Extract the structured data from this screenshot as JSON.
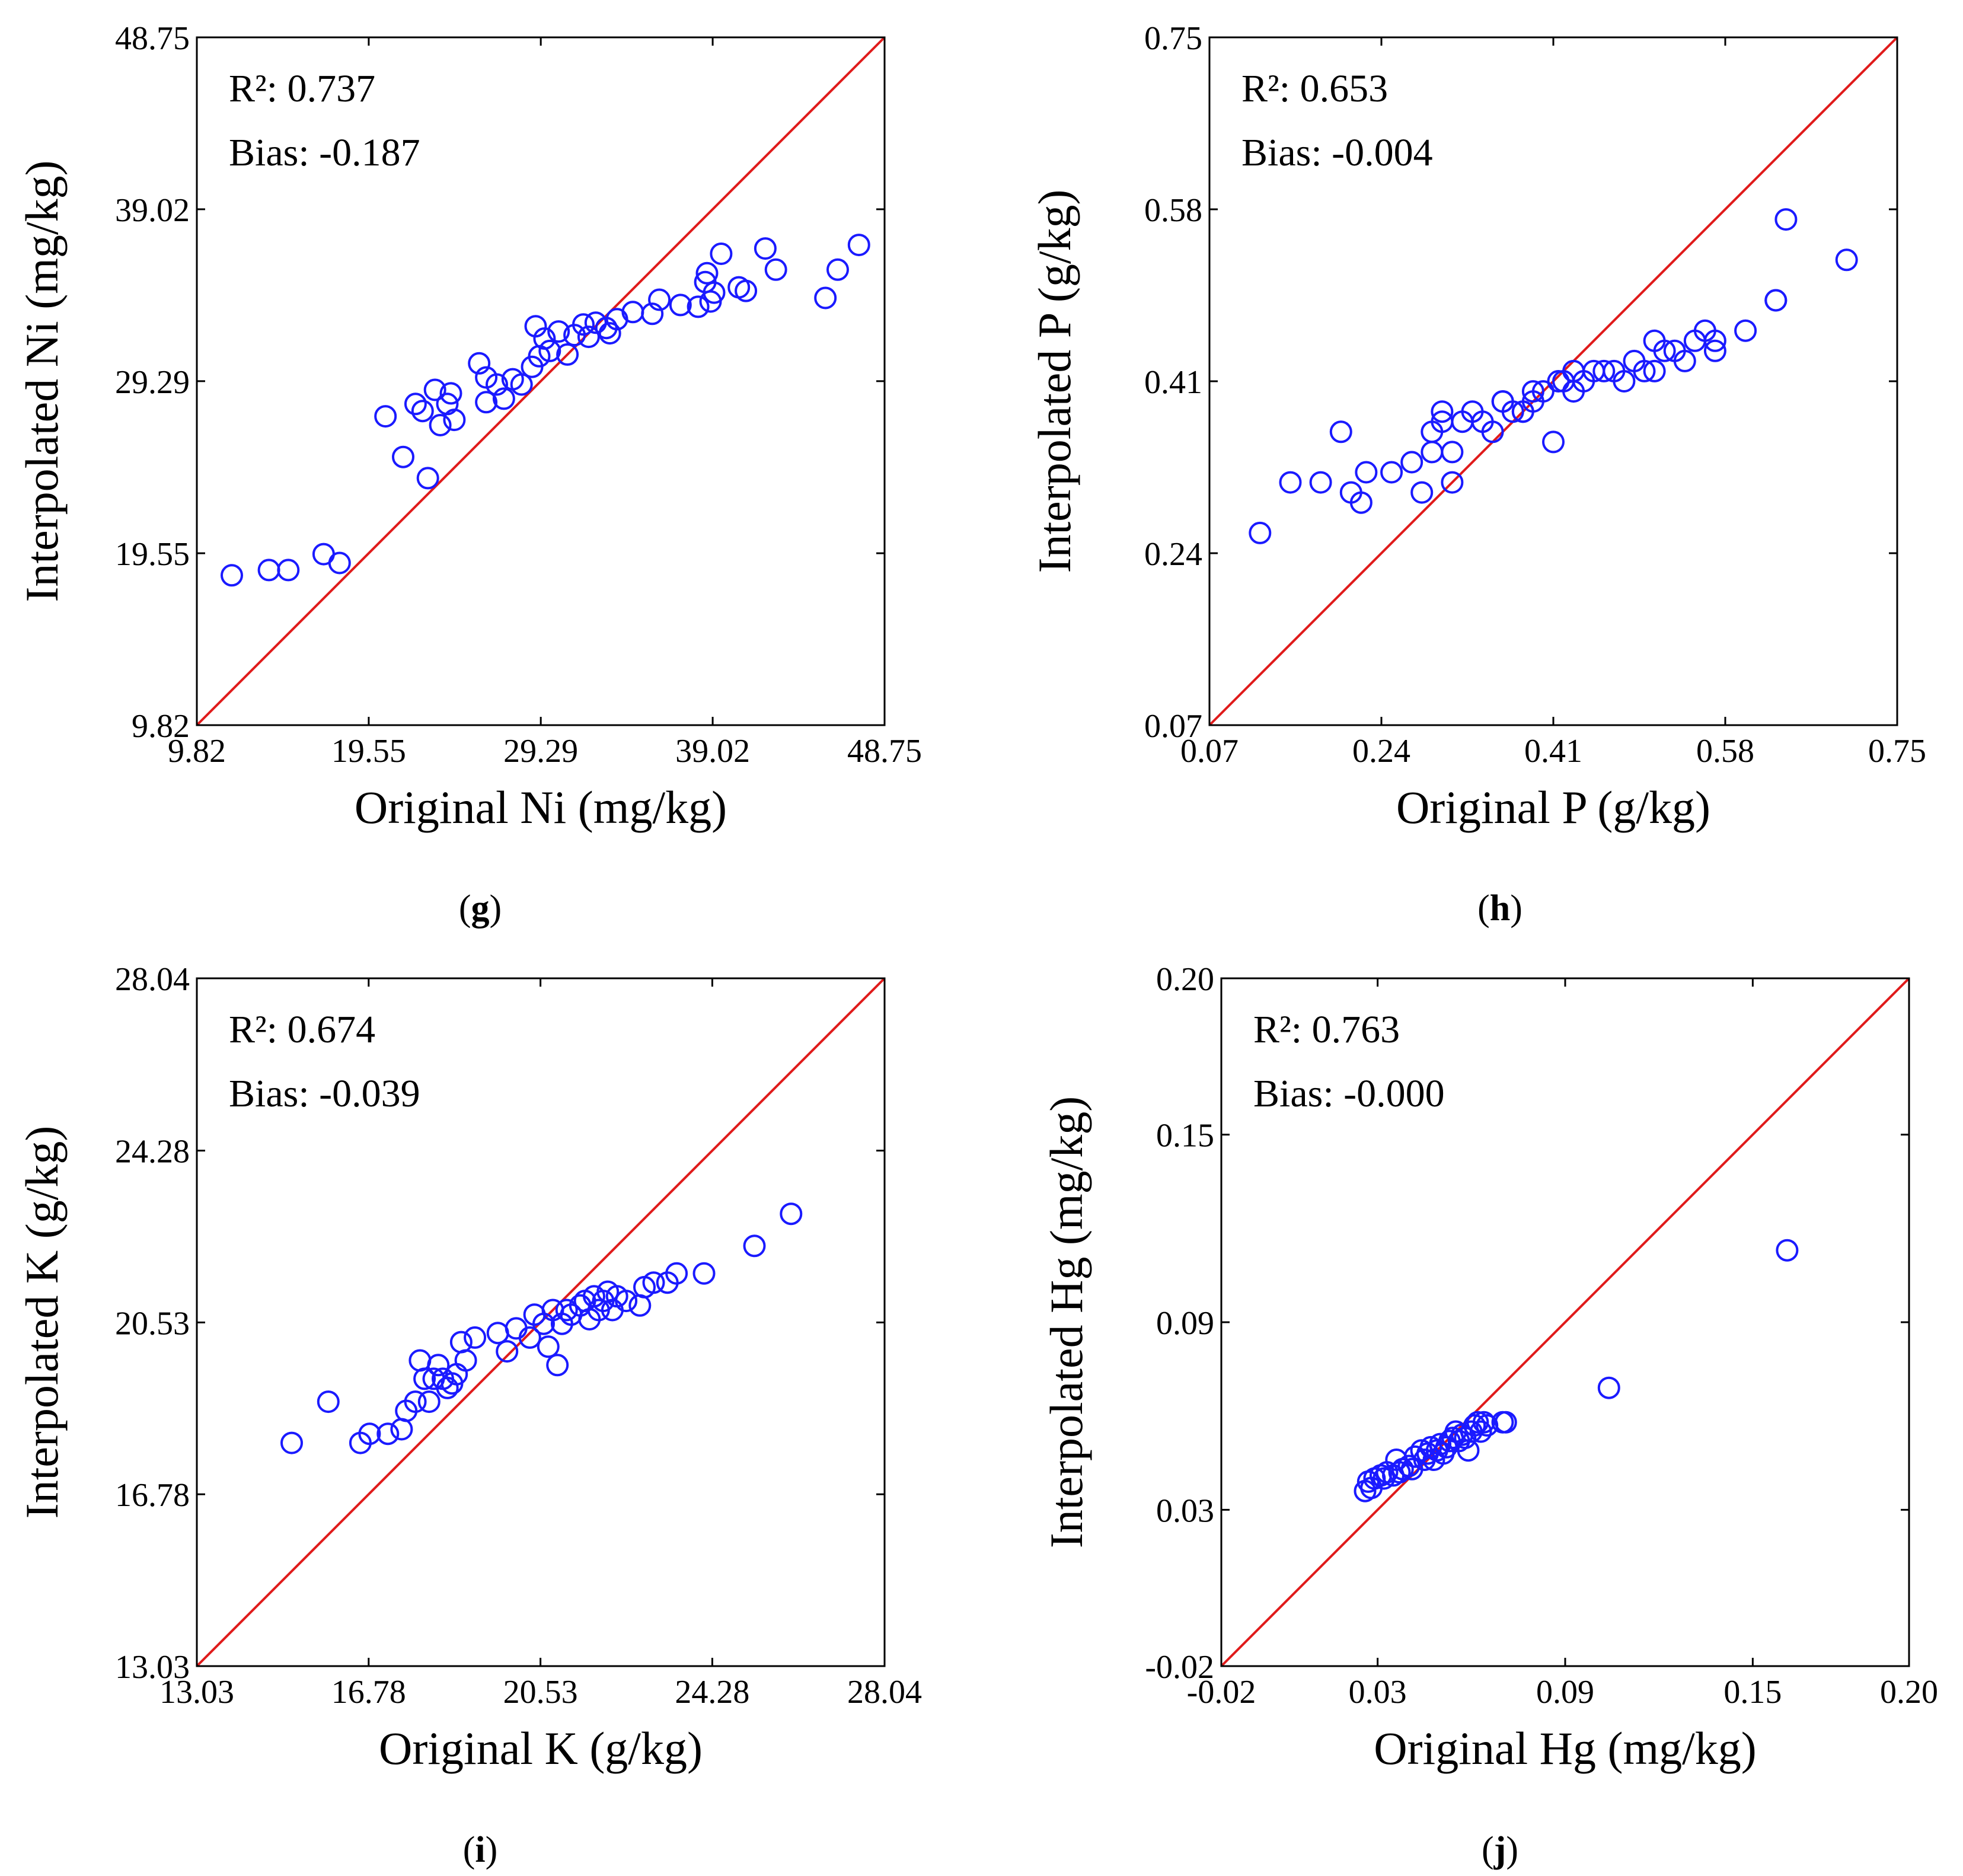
{
  "chart_data": [
    {
      "id": "g",
      "type": "scatter",
      "panel_label": "g",
      "xlabel": "Original Ni (mg/kg)",
      "ylabel": "Interpolated Ni (mg/kg)",
      "xlim": [
        9.82,
        48.75
      ],
      "ylim": [
        9.82,
        48.75
      ],
      "ticks": [
        9.82,
        19.55,
        29.29,
        39.02,
        48.75
      ],
      "tick_labels": [
        "9.82",
        "19.55",
        "29.29",
        "39.02",
        "48.75"
      ],
      "r2_text": "R²: 0.737",
      "bias_text": "Bias: -0.187",
      "reference_line": "1:1",
      "colors": {
        "points": "#1a1aff",
        "line": "#e01b1b",
        "frame": "#000000"
      },
      "points": [
        [
          11.8,
          18.3
        ],
        [
          13.9,
          18.6
        ],
        [
          15.0,
          18.6
        ],
        [
          17.0,
          19.5
        ],
        [
          17.9,
          19.0
        ],
        [
          20.5,
          27.3
        ],
        [
          21.5,
          25.0
        ],
        [
          22.2,
          28.0
        ],
        [
          22.6,
          27.6
        ],
        [
          22.9,
          23.8
        ],
        [
          23.3,
          28.8
        ],
        [
          23.6,
          26.8
        ],
        [
          24.0,
          28.0
        ],
        [
          24.2,
          28.6
        ],
        [
          24.4,
          27.1
        ],
        [
          25.8,
          30.3
        ],
        [
          26.2,
          29.5
        ],
        [
          26.2,
          28.1
        ],
        [
          26.8,
          29.1
        ],
        [
          27.2,
          28.3
        ],
        [
          27.7,
          29.4
        ],
        [
          28.2,
          29.1
        ],
        [
          28.8,
          30.1
        ],
        [
          29.0,
          32.4
        ],
        [
          29.2,
          30.7
        ],
        [
          29.5,
          31.7
        ],
        [
          29.8,
          31.0
        ],
        [
          30.3,
          32.1
        ],
        [
          30.8,
          30.8
        ],
        [
          31.2,
          31.9
        ],
        [
          31.7,
          32.5
        ],
        [
          32.0,
          31.8
        ],
        [
          32.4,
          32.6
        ],
        [
          33.0,
          32.3
        ],
        [
          33.6,
          32.8
        ],
        [
          33.2,
          32.0
        ],
        [
          34.5,
          33.2
        ],
        [
          35.6,
          33.1
        ],
        [
          36.0,
          33.9
        ],
        [
          37.2,
          33.6
        ],
        [
          38.2,
          33.5
        ],
        [
          38.6,
          34.9
        ],
        [
          38.9,
          33.8
        ],
        [
          39.1,
          34.3
        ],
        [
          38.7,
          35.4
        ],
        [
          39.5,
          36.5
        ],
        [
          40.5,
          34.6
        ],
        [
          40.9,
          34.4
        ],
        [
          42.0,
          36.8
        ],
        [
          42.6,
          35.6
        ],
        [
          45.4,
          34.0
        ],
        [
          46.1,
          35.6
        ],
        [
          47.3,
          37.0
        ]
      ]
    },
    {
      "id": "h",
      "type": "scatter",
      "panel_label": "h",
      "xlabel": "Original P (g/kg)",
      "ylabel": "Interpolated P (g/kg)",
      "xlim": [
        0.07,
        0.75
      ],
      "ylim": [
        0.07,
        0.75
      ],
      "ticks": [
        0.07,
        0.24,
        0.41,
        0.58,
        0.75
      ],
      "tick_labels": [
        "0.07",
        "0.24",
        "0.41",
        "0.58",
        "0.75"
      ],
      "r2_text": "R²: 0.653",
      "bias_text": "Bias: -0.004",
      "reference_line": "1:1",
      "colors": {
        "points": "#1a1aff",
        "line": "#e01b1b",
        "frame": "#000000"
      },
      "points": [
        [
          0.12,
          0.26
        ],
        [
          0.15,
          0.31
        ],
        [
          0.18,
          0.31
        ],
        [
          0.2,
          0.36
        ],
        [
          0.21,
          0.3
        ],
        [
          0.22,
          0.29
        ],
        [
          0.225,
          0.32
        ],
        [
          0.25,
          0.32
        ],
        [
          0.27,
          0.33
        ],
        [
          0.28,
          0.3
        ],
        [
          0.29,
          0.34
        ],
        [
          0.29,
          0.36
        ],
        [
          0.3,
          0.37
        ],
        [
          0.3,
          0.38
        ],
        [
          0.31,
          0.34
        ],
        [
          0.31,
          0.31
        ],
        [
          0.32,
          0.37
        ],
        [
          0.33,
          0.38
        ],
        [
          0.34,
          0.37
        ],
        [
          0.35,
          0.36
        ],
        [
          0.36,
          0.39
        ],
        [
          0.36,
          0.39
        ],
        [
          0.37,
          0.38
        ],
        [
          0.38,
          0.38
        ],
        [
          0.38,
          0.38
        ],
        [
          0.39,
          0.39
        ],
        [
          0.39,
          0.4
        ],
        [
          0.4,
          0.4
        ],
        [
          0.41,
          0.35
        ],
        [
          0.415,
          0.41
        ],
        [
          0.42,
          0.41
        ],
        [
          0.43,
          0.4
        ],
        [
          0.43,
          0.42
        ],
        [
          0.44,
          0.41
        ],
        [
          0.45,
          0.42
        ],
        [
          0.46,
          0.42
        ],
        [
          0.47,
          0.42
        ],
        [
          0.48,
          0.41
        ],
        [
          0.49,
          0.43
        ],
        [
          0.5,
          0.42
        ],
        [
          0.51,
          0.45
        ],
        [
          0.51,
          0.42
        ],
        [
          0.52,
          0.44
        ],
        [
          0.53,
          0.44
        ],
        [
          0.54,
          0.43
        ],
        [
          0.55,
          0.45
        ],
        [
          0.56,
          0.46
        ],
        [
          0.57,
          0.44
        ],
        [
          0.57,
          0.45
        ],
        [
          0.6,
          0.46
        ],
        [
          0.63,
          0.49
        ],
        [
          0.63,
          0.49
        ],
        [
          0.64,
          0.57
        ],
        [
          0.7,
          0.53
        ]
      ]
    },
    {
      "id": "i",
      "type": "scatter",
      "panel_label": "i",
      "xlabel": "Original K (g/kg)",
      "ylabel": "Interpolated K (g/kg)",
      "xlim": [
        13.03,
        28.04
      ],
      "ylim": [
        13.03,
        28.04
      ],
      "ticks": [
        13.03,
        16.78,
        20.53,
        24.28,
        28.04
      ],
      "tick_labels": [
        "13.03",
        "16.78",
        "20.53",
        "24.28",
        "28.04"
      ],
      "r2_text": "R²: 0.674",
      "bias_text": "Bias: -0.039",
      "reference_line": "1:1",
      "colors": {
        "points": "#1a1aff",
        "line": "#e01b1b",
        "frame": "#000000"
      },
      "points": [
        [
          15.1,
          17.9
        ],
        [
          15.9,
          18.8
        ],
        [
          16.6,
          17.9
        ],
        [
          16.8,
          18.1
        ],
        [
          17.2,
          18.1
        ],
        [
          17.5,
          18.2
        ],
        [
          17.6,
          18.6
        ],
        [
          17.8,
          18.8
        ],
        [
          17.9,
          19.7
        ],
        [
          18.0,
          19.3
        ],
        [
          18.1,
          18.8
        ],
        [
          18.2,
          19.3
        ],
        [
          18.3,
          19.6
        ],
        [
          18.4,
          19.3
        ],
        [
          18.5,
          19.1
        ],
        [
          18.6,
          19.2
        ],
        [
          18.7,
          19.4
        ],
        [
          18.8,
          20.1
        ],
        [
          18.9,
          19.7
        ],
        [
          19.1,
          20.2
        ],
        [
          19.6,
          20.3
        ],
        [
          19.8,
          19.9
        ],
        [
          20.0,
          20.4
        ],
        [
          20.3,
          20.2
        ],
        [
          20.4,
          20.7
        ],
        [
          20.6,
          20.5
        ],
        [
          20.7,
          20.0
        ],
        [
          20.8,
          20.8
        ],
        [
          20.9,
          19.6
        ],
        [
          21.0,
          20.5
        ],
        [
          21.1,
          20.8
        ],
        [
          21.2,
          20.7
        ],
        [
          21.4,
          20.9
        ],
        [
          21.5,
          21.0
        ],
        [
          21.6,
          20.6
        ],
        [
          21.7,
          21.1
        ],
        [
          21.8,
          20.8
        ],
        [
          21.9,
          21.0
        ],
        [
          22.0,
          21.2
        ],
        [
          22.1,
          20.8
        ],
        [
          22.2,
          21.1
        ],
        [
          22.4,
          21.0
        ],
        [
          22.7,
          20.9
        ],
        [
          22.8,
          21.3
        ],
        [
          23.0,
          21.4
        ],
        [
          23.3,
          21.4
        ],
        [
          23.5,
          21.6
        ],
        [
          24.1,
          21.6
        ],
        [
          25.2,
          22.2
        ],
        [
          26.0,
          22.9
        ]
      ]
    },
    {
      "id": "j",
      "type": "scatter",
      "panel_label": "j",
      "xlabel": "Original Hg (mg/kg)",
      "ylabel": "Interpolated Hg (mg/kg)",
      "xlim": [
        -0.02,
        0.2
      ],
      "ylim": [
        -0.02,
        0.2
      ],
      "ticks": [
        -0.02,
        0.03,
        0.09,
        0.15,
        0.2
      ],
      "tick_labels": [
        "-0.02",
        "0.03",
        "0.09",
        "0.15",
        "0.20"
      ],
      "r2_text": "R²: 0.763",
      "bias_text": "Bias: -0.000",
      "reference_line": "1:1",
      "colors": {
        "points": "#1a1aff",
        "line": "#e01b1b",
        "frame": "#000000"
      },
      "points": [
        [
          0.026,
          0.036
        ],
        [
          0.027,
          0.039
        ],
        [
          0.028,
          0.037
        ],
        [
          0.029,
          0.04
        ],
        [
          0.031,
          0.041
        ],
        [
          0.032,
          0.04
        ],
        [
          0.033,
          0.042
        ],
        [
          0.035,
          0.041
        ],
        [
          0.036,
          0.046
        ],
        [
          0.037,
          0.042
        ],
        [
          0.038,
          0.043
        ],
        [
          0.04,
          0.044
        ],
        [
          0.041,
          0.043
        ],
        [
          0.042,
          0.047
        ],
        [
          0.044,
          0.049
        ],
        [
          0.045,
          0.046
        ],
        [
          0.046,
          0.048
        ],
        [
          0.047,
          0.05
        ],
        [
          0.048,
          0.046
        ],
        [
          0.049,
          0.049
        ],
        [
          0.05,
          0.051
        ],
        [
          0.051,
          0.048
        ],
        [
          0.052,
          0.05
        ],
        [
          0.053,
          0.052
        ],
        [
          0.054,
          0.053
        ],
        [
          0.055,
          0.055
        ],
        [
          0.056,
          0.052
        ],
        [
          0.057,
          0.054
        ],
        [
          0.058,
          0.053
        ],
        [
          0.059,
          0.049
        ],
        [
          0.06,
          0.055
        ],
        [
          0.061,
          0.057
        ],
        [
          0.062,
          0.058
        ],
        [
          0.063,
          0.055
        ],
        [
          0.064,
          0.058
        ],
        [
          0.065,
          0.057
        ],
        [
          0.07,
          0.058
        ],
        [
          0.071,
          0.058
        ],
        [
          0.104,
          0.069
        ],
        [
          0.161,
          0.113
        ]
      ]
    }
  ]
}
